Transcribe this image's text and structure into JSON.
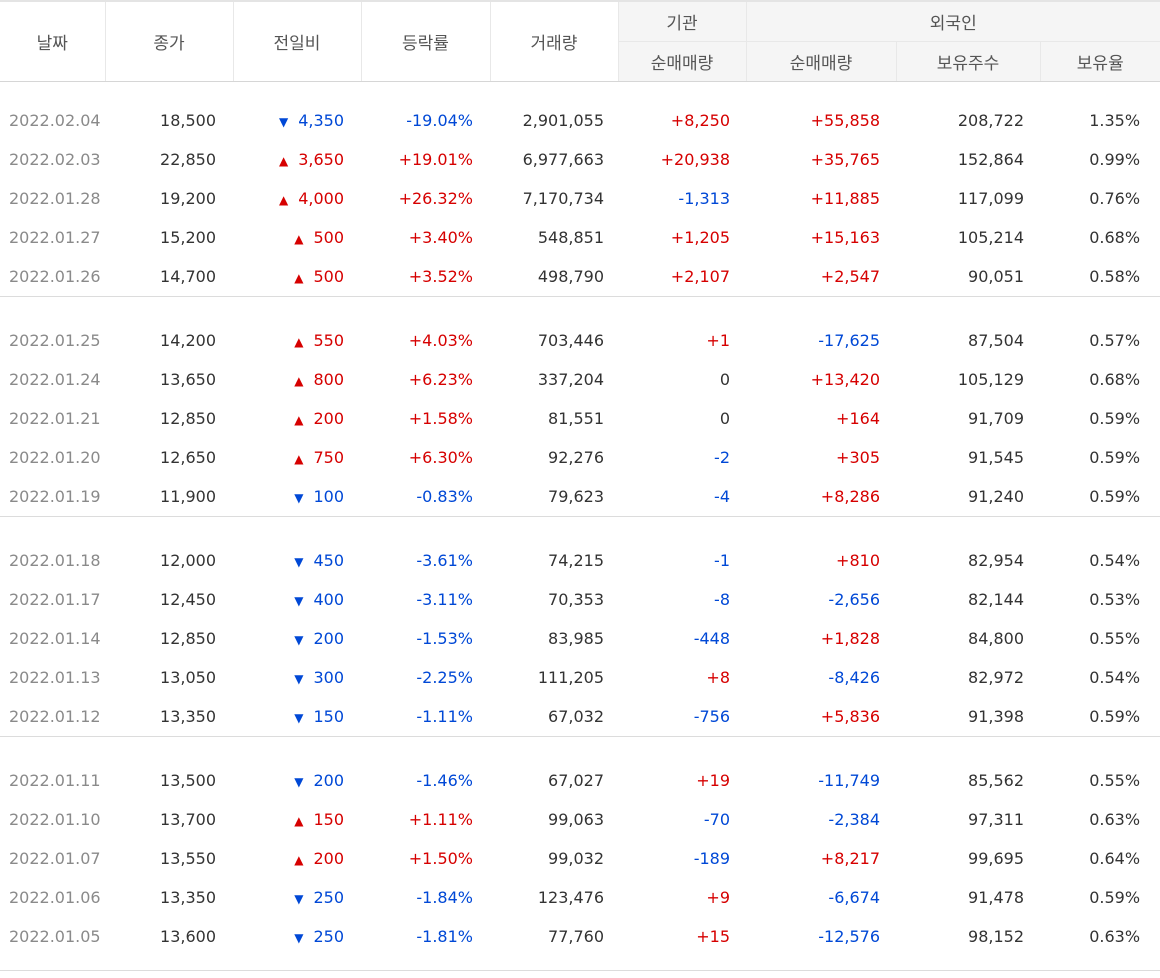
{
  "headers": {
    "date": "날짜",
    "close": "종가",
    "change": "전일비",
    "rate": "등락률",
    "volume": "거래량",
    "institution": "기관",
    "institution_net": "순매매량",
    "foreign": "외국인",
    "foreign_net": "순매매량",
    "foreign_holdings": "보유주수",
    "foreign_ratio": "보유율"
  },
  "colors": {
    "up": "#d60000",
    "down": "#0048d6",
    "date": "#8a8a8a"
  },
  "groups": [
    [
      {
        "date": "2022.02.04",
        "close": "18,500",
        "dir": "down",
        "change": "4,350",
        "rate": "-19.04%",
        "volume": "2,901,055",
        "inst": "+8,250",
        "fnet": "+55,858",
        "fhold": "208,722",
        "fratio": "1.35%"
      },
      {
        "date": "2022.02.03",
        "close": "22,850",
        "dir": "up",
        "change": "3,650",
        "rate": "+19.01%",
        "volume": "6,977,663",
        "inst": "+20,938",
        "fnet": "+35,765",
        "fhold": "152,864",
        "fratio": "0.99%"
      },
      {
        "date": "2022.01.28",
        "close": "19,200",
        "dir": "up",
        "change": "4,000",
        "rate": "+26.32%",
        "volume": "7,170,734",
        "inst": "-1,313",
        "fnet": "+11,885",
        "fhold": "117,099",
        "fratio": "0.76%"
      },
      {
        "date": "2022.01.27",
        "close": "15,200",
        "dir": "up",
        "change": "500",
        "rate": "+3.40%",
        "volume": "548,851",
        "inst": "+1,205",
        "fnet": "+15,163",
        "fhold": "105,214",
        "fratio": "0.68%"
      },
      {
        "date": "2022.01.26",
        "close": "14,700",
        "dir": "up",
        "change": "500",
        "rate": "+3.52%",
        "volume": "498,790",
        "inst": "+2,107",
        "fnet": "+2,547",
        "fhold": "90,051",
        "fratio": "0.58%"
      }
    ],
    [
      {
        "date": "2022.01.25",
        "close": "14,200",
        "dir": "up",
        "change": "550",
        "rate": "+4.03%",
        "volume": "703,446",
        "inst": "+1",
        "fnet": "-17,625",
        "fhold": "87,504",
        "fratio": "0.57%"
      },
      {
        "date": "2022.01.24",
        "close": "13,650",
        "dir": "up",
        "change": "800",
        "rate": "+6.23%",
        "volume": "337,204",
        "inst": "0",
        "fnet": "+13,420",
        "fhold": "105,129",
        "fratio": "0.68%"
      },
      {
        "date": "2022.01.21",
        "close": "12,850",
        "dir": "up",
        "change": "200",
        "rate": "+1.58%",
        "volume": "81,551",
        "inst": "0",
        "fnet": "+164",
        "fhold": "91,709",
        "fratio": "0.59%"
      },
      {
        "date": "2022.01.20",
        "close": "12,650",
        "dir": "up",
        "change": "750",
        "rate": "+6.30%",
        "volume": "92,276",
        "inst": "-2",
        "fnet": "+305",
        "fhold": "91,545",
        "fratio": "0.59%"
      },
      {
        "date": "2022.01.19",
        "close": "11,900",
        "dir": "down",
        "change": "100",
        "rate": "-0.83%",
        "volume": "79,623",
        "inst": "-4",
        "fnet": "+8,286",
        "fhold": "91,240",
        "fratio": "0.59%"
      }
    ],
    [
      {
        "date": "2022.01.18",
        "close": "12,000",
        "dir": "down",
        "change": "450",
        "rate": "-3.61%",
        "volume": "74,215",
        "inst": "-1",
        "fnet": "+810",
        "fhold": "82,954",
        "fratio": "0.54%"
      },
      {
        "date": "2022.01.17",
        "close": "12,450",
        "dir": "down",
        "change": "400",
        "rate": "-3.11%",
        "volume": "70,353",
        "inst": "-8",
        "fnet": "-2,656",
        "fhold": "82,144",
        "fratio": "0.53%"
      },
      {
        "date": "2022.01.14",
        "close": "12,850",
        "dir": "down",
        "change": "200",
        "rate": "-1.53%",
        "volume": "83,985",
        "inst": "-448",
        "fnet": "+1,828",
        "fhold": "84,800",
        "fratio": "0.55%"
      },
      {
        "date": "2022.01.13",
        "close": "13,050",
        "dir": "down",
        "change": "300",
        "rate": "-2.25%",
        "volume": "111,205",
        "inst": "+8",
        "fnet": "-8,426",
        "fhold": "82,972",
        "fratio": "0.54%"
      },
      {
        "date": "2022.01.12",
        "close": "13,350",
        "dir": "down",
        "change": "150",
        "rate": "-1.11%",
        "volume": "67,032",
        "inst": "-756",
        "fnet": "+5,836",
        "fhold": "91,398",
        "fratio": "0.59%"
      }
    ],
    [
      {
        "date": "2022.01.11",
        "close": "13,500",
        "dir": "down",
        "change": "200",
        "rate": "-1.46%",
        "volume": "67,027",
        "inst": "+19",
        "fnet": "-11,749",
        "fhold": "85,562",
        "fratio": "0.55%"
      },
      {
        "date": "2022.01.10",
        "close": "13,700",
        "dir": "up",
        "change": "150",
        "rate": "+1.11%",
        "volume": "99,063",
        "inst": "-70",
        "fnet": "-2,384",
        "fhold": "97,311",
        "fratio": "0.63%"
      },
      {
        "date": "2022.01.07",
        "close": "13,550",
        "dir": "up",
        "change": "200",
        "rate": "+1.50%",
        "volume": "99,032",
        "inst": "-189",
        "fnet": "+8,217",
        "fhold": "99,695",
        "fratio": "0.64%"
      },
      {
        "date": "2022.01.06",
        "close": "13,350",
        "dir": "down",
        "change": "250",
        "rate": "-1.84%",
        "volume": "123,476",
        "inst": "+9",
        "fnet": "-6,674",
        "fhold": "91,478",
        "fratio": "0.59%"
      },
      {
        "date": "2022.01.05",
        "close": "13,600",
        "dir": "down",
        "change": "250",
        "rate": "-1.81%",
        "volume": "77,760",
        "inst": "+15",
        "fnet": "-12,576",
        "fhold": "98,152",
        "fratio": "0.63%"
      }
    ]
  ]
}
